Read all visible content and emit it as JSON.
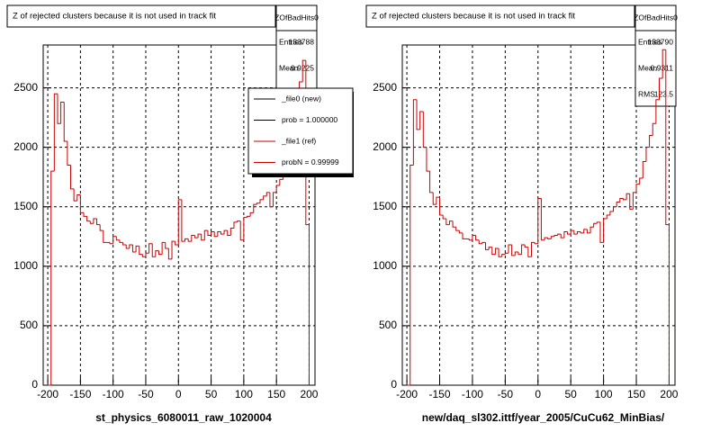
{
  "chart_data": [
    {
      "type": "histogram",
      "title": "Z of rejected clusters  because it is not used in track fit",
      "x_label": "st_physics_6080011_raw_1020004",
      "bins": [
        -200,
        -195,
        -190,
        -185,
        -180,
        -175,
        -170,
        -165,
        -160,
        -155,
        -150,
        -145,
        -140,
        -135,
        -130,
        -125,
        -120,
        -115,
        -110,
        -105,
        -100,
        -95,
        -90,
        -85,
        -80,
        -75,
        -70,
        -65,
        -60,
        -55,
        -50,
        -45,
        -40,
        -35,
        -30,
        -25,
        -20,
        -15,
        -10,
        -5,
        0,
        5,
        10,
        15,
        20,
        25,
        30,
        35,
        40,
        45,
        50,
        55,
        60,
        65,
        70,
        75,
        80,
        85,
        90,
        95,
        100,
        105,
        110,
        115,
        120,
        125,
        130,
        135,
        140,
        145,
        150,
        155,
        160,
        165,
        170,
        175,
        180,
        185,
        190,
        195,
        200
      ],
      "values": [
        0,
        1800,
        2450,
        2200,
        2380,
        2050,
        1850,
        1650,
        1550,
        1600,
        1450,
        1420,
        1380,
        1360,
        1400,
        1350,
        1300,
        1200,
        1200,
        1190,
        1250,
        1220,
        1200,
        1180,
        1150,
        1180,
        1120,
        1170,
        1100,
        1080,
        1110,
        1190,
        1080,
        1130,
        1100,
        1200,
        1150,
        1060,
        1210,
        1180,
        1560,
        1210,
        1230,
        1210,
        1260,
        1240,
        1270,
        1220,
        1300,
        1260,
        1290,
        1250,
        1290,
        1270,
        1300,
        1260,
        1320,
        1370,
        1380,
        1220,
        1410,
        1420,
        1450,
        1520,
        1530,
        1560,
        1590,
        1620,
        1500,
        1620,
        1680,
        1730,
        1800,
        1950,
        2100,
        2200,
        2400,
        2550,
        2730,
        1350
      ],
      "color": "#cc0000",
      "xlim": [
        -207,
        209
      ],
      "ylim": [
        0,
        2860
      ],
      "xticks": [
        -200,
        -150,
        -100,
        -50,
        0,
        50,
        100,
        150,
        200
      ],
      "yticks": [
        0,
        500,
        1000,
        1500,
        2000,
        2500
      ],
      "grid": true,
      "stats": {
        "name": "ZOfBadHits0",
        "entries": [
          {
            "label": "Entries",
            "value": 133788
          },
          {
            "label": "Mean",
            "value": 0.9225
          }
        ]
      },
      "legend": [
        {
          "label": "_file0 (new)",
          "color": "#000000"
        },
        {
          "label": "prob = 1.000000",
          "color": "#000000"
        },
        {
          "label": "_file1 (ref)",
          "color": "#cc0000"
        },
        {
          "label": "probN = 0.99999",
          "color": "#cc0000"
        }
      ]
    },
    {
      "type": "histogram",
      "title": "Z of rejected clusters  because it is not used in track fit",
      "x_label": "new/daq_sl302.ittf/year_2005/CuCu62_MinBias/",
      "bins": [
        -200,
        -195,
        -190,
        -185,
        -180,
        -175,
        -170,
        -165,
        -160,
        -155,
        -150,
        -145,
        -140,
        -135,
        -130,
        -125,
        -120,
        -115,
        -110,
        -105,
        -100,
        -95,
        -90,
        -85,
        -80,
        -75,
        -70,
        -65,
        -60,
        -55,
        -50,
        -45,
        -40,
        -35,
        -30,
        -25,
        -20,
        -15,
        -10,
        -5,
        0,
        5,
        10,
        15,
        20,
        25,
        30,
        35,
        40,
        45,
        50,
        55,
        60,
        65,
        70,
        75,
        80,
        85,
        90,
        95,
        100,
        105,
        110,
        115,
        120,
        125,
        130,
        135,
        140,
        145,
        150,
        155,
        160,
        165,
        170,
        175,
        180,
        185,
        190,
        195,
        200
      ],
      "values": [
        0,
        1850,
        2400,
        2150,
        2300,
        2000,
        1800,
        1620,
        1520,
        1580,
        1430,
        1400,
        1350,
        1380,
        1330,
        1300,
        1280,
        1230,
        1230,
        1220,
        1260,
        1220,
        1190,
        1200,
        1140,
        1160,
        1100,
        1150,
        1080,
        1100,
        1110,
        1180,
        1090,
        1120,
        1100,
        1180,
        1160,
        1080,
        1200,
        1190,
        1570,
        1220,
        1240,
        1230,
        1250,
        1260,
        1270,
        1240,
        1290,
        1270,
        1300,
        1270,
        1290,
        1280,
        1310,
        1280,
        1330,
        1360,
        1370,
        1200,
        1400,
        1430,
        1460,
        1500,
        1540,
        1570,
        1560,
        1610,
        1480,
        1620,
        1690,
        1740,
        1880,
        2000,
        2100,
        2200,
        2400,
        2580,
        2820,
        1350
      ],
      "color": "#cc0000",
      "xlim": [
        -207,
        209
      ],
      "ylim": [
        0,
        2860
      ],
      "xticks": [
        -200,
        -150,
        -100,
        -50,
        0,
        50,
        100,
        150,
        200
      ],
      "yticks": [
        0,
        500,
        1000,
        1500,
        2000,
        2500
      ],
      "grid": true,
      "stats": {
        "name": "ZOfBadHits0",
        "entries": [
          {
            "label": "Entries",
            "value": 133790
          },
          {
            "label": "Mean",
            "value": 0.9311
          },
          {
            "label": "RMS",
            "value": 123.5
          }
        ]
      }
    }
  ]
}
